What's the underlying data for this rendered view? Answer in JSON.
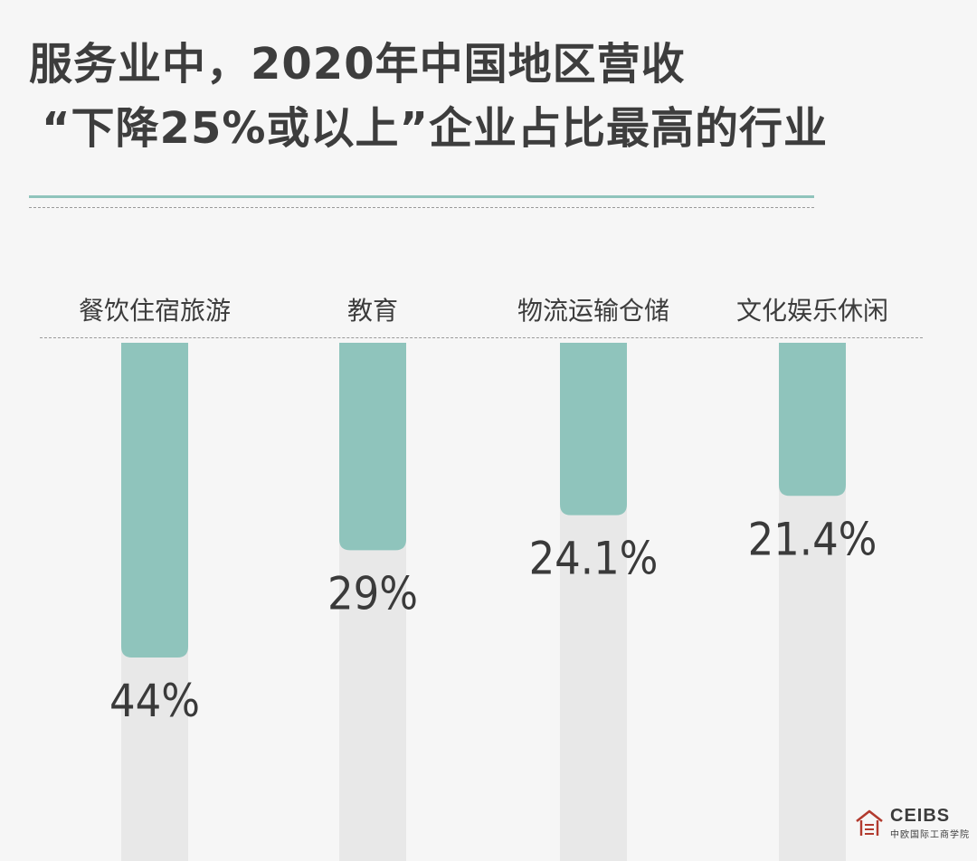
{
  "title": {
    "line1": "服务业中，2020年中国地区营收",
    "line2": "“下降25%或以上”企业占比最高的行业"
  },
  "logo": {
    "mark": "CEIBS logo mark",
    "name": "CEIBS",
    "sub": "中欧国际工商学院"
  },
  "colors": {
    "bar": "#8fc4bc",
    "track": "#e8e8e8",
    "background": "#f6f6f6",
    "text": "#3c3c3c"
  },
  "chart_data": {
    "type": "bar",
    "orientation": "vertical-downward",
    "categories": [
      "餐饮住宿旅游",
      "教育",
      "物流运输仓储",
      "文化娱乐休闲"
    ],
    "values": [
      44,
      29,
      24.1,
      21.4
    ],
    "value_labels": [
      "44%",
      "29%",
      "24.1%",
      "21.4%"
    ],
    "unit": "%",
    "title": "服务业中，2020年中国地区营收“下降25%或以上”企业占比最高的行业",
    "xlabel": "",
    "ylabel": "",
    "grid": false,
    "legend": "none"
  }
}
